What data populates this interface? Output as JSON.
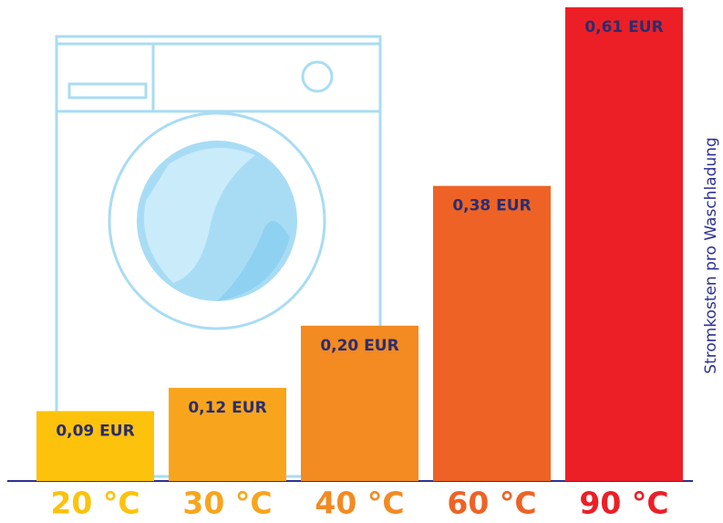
{
  "chart_data": {
    "type": "bar",
    "y_axis_label": "Stromkosten pro Waschladung",
    "categories": [
      "20 °C",
      "30 °C",
      "40 °C",
      "60 °C",
      "90 °C"
    ],
    "values": [
      0.09,
      0.12,
      0.2,
      0.38,
      0.61
    ],
    "value_labels": [
      "0,09 EUR",
      "0,12 EUR",
      "0,20 EUR",
      "0,38 EUR",
      "0,61 EUR"
    ],
    "colors": [
      "#fcc20c",
      "#f8a51d",
      "#f38a22",
      "#ee6325",
      "#ec1f27"
    ]
  }
}
